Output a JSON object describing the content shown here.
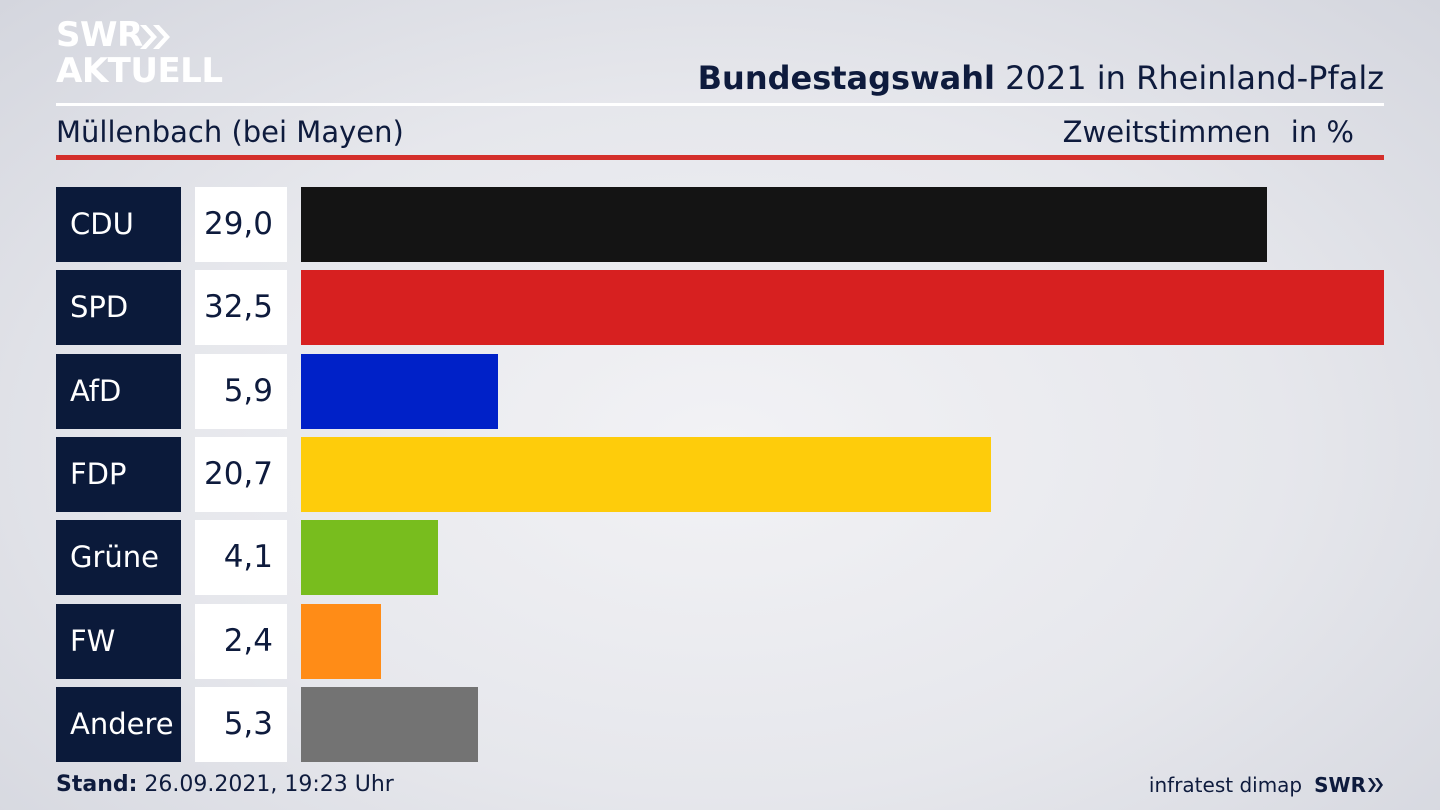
{
  "brand": {
    "logo_line1": "SWR",
    "logo_line2": "AKTUELL"
  },
  "header": {
    "title_bold": "Bundestagswahl",
    "title_rest": " 2021 in Rheinland-Pfalz",
    "location": "Müllenbach (bei Mayen)",
    "measure": "Zweitstimmen",
    "unit": "in %"
  },
  "chart_data": {
    "type": "bar",
    "orientation": "horizontal",
    "title": "Bundestagswahl 2021 in Rheinland-Pfalz",
    "subtitle": "Müllenbach (bei Mayen)",
    "measure": "Zweitstimmen",
    "unit": "in %",
    "categories": [
      "CDU",
      "SPD",
      "AfD",
      "FDP",
      "Grüne",
      "FW",
      "Andere"
    ],
    "values": [
      29.0,
      32.5,
      5.9,
      20.7,
      4.1,
      2.4,
      5.3
    ],
    "value_labels": [
      "29,0",
      "32,5",
      "5,9",
      "20,7",
      "4,1",
      "2,4",
      "5,3"
    ],
    "colors": [
      "#141414",
      "#d72020",
      "#0021c8",
      "#fecc0b",
      "#78bd1e",
      "#ff8c17",
      "#737373"
    ],
    "xlim": [
      0,
      32.5
    ],
    "grid": false,
    "legend": "none"
  },
  "footer": {
    "stand_label": "Stand:",
    "stand_value": " 26.09.2021, 19:23 Uhr",
    "source": "infratest dimap",
    "broadcaster": "SWR"
  }
}
